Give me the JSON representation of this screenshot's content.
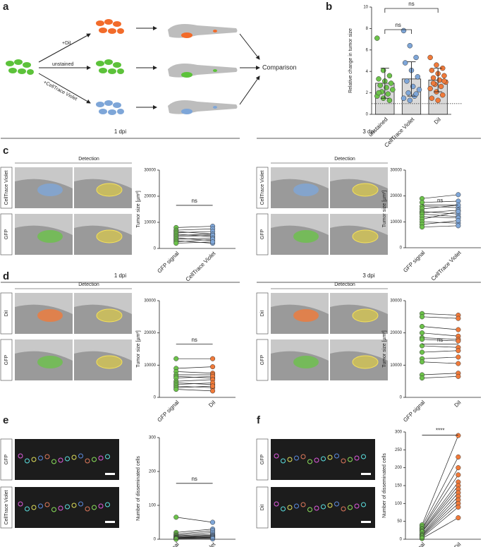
{
  "figure": {
    "panel_labels": [
      "a",
      "b",
      "c",
      "d",
      "e",
      "f"
    ],
    "diagram": {
      "labels": [
        "+DiI",
        "unstained",
        "+CellTrace Violet"
      ],
      "result": "Comparison"
    },
    "timepoints": [
      "1 dpi",
      "3 dpi"
    ],
    "detection": "Detection",
    "channels": [
      "CellTrace Violet",
      "GFP",
      "DiI"
    ]
  },
  "chart_data": [
    {
      "type": "bar",
      "ylabel": "Relative change in tumor size",
      "categories": [
        "unstained",
        "CellTrace Violet",
        "DiI"
      ],
      "colors": [
        "#6cc24a",
        "#7ea6d8",
        "#f07a3a"
      ],
      "bar_color": "#d9d9d9",
      "values": [
        2.9,
        3.3,
        3.2
      ],
      "errors": [
        1.4,
        1.6,
        1.1
      ],
      "points": [
        [
          7.1,
          4.1,
          3.6,
          3.3,
          3.1,
          2.9,
          2.7,
          2.5,
          2.3,
          2.1,
          1.9,
          1.7,
          1.5,
          1.3,
          2.0
        ],
        [
          7.8,
          6.4,
          5.3,
          4.8,
          4.1,
          3.5,
          3.1,
          2.6,
          2.3,
          2.0,
          1.7,
          1.5,
          1.3,
          1.9
        ],
        [
          5.3,
          4.6,
          4.3,
          4.1,
          3.8,
          3.6,
          3.4,
          3.2,
          3.0,
          2.8,
          2.6,
          2.4,
          2.1,
          1.8,
          1.5,
          1.3,
          3.1,
          2.9
        ]
      ],
      "reference_line": 1,
      "ylim": [
        0,
        10
      ],
      "yticks": [
        0,
        2,
        4,
        6,
        8,
        10
      ],
      "significance": [
        "ns",
        "ns"
      ]
    },
    {
      "type": "paired",
      "ylabel": "Tumor size [µm²]",
      "categories": [
        "GFP signal",
        "CellTrace Violet"
      ],
      "groups": [
        {
          "color": "#6cc24a",
          "values": [
            8000,
            7000,
            6500,
            6000,
            5500,
            5000,
            4500,
            4000,
            3500,
            3000,
            2500,
            2000
          ]
        },
        {
          "color": "#7ea6d8",
          "values": [
            8500,
            7500,
            5500,
            6500,
            4500,
            5500,
            5000,
            3000,
            4000,
            2000,
            3500,
            2500
          ]
        }
      ],
      "ylim": [
        0,
        30000
      ],
      "yticks": [
        0,
        10000,
        20000,
        30000
      ],
      "significance": "ns"
    },
    {
      "type": "paired",
      "ylabel": "Tumor size [µm²]",
      "categories": [
        "GFP signal",
        "CellTrace Violet"
      ],
      "groups": [
        {
          "color": "#6cc24a",
          "values": [
            19000,
            17500,
            16000,
            15000,
            14000,
            13500,
            13000,
            12000,
            11000,
            10000,
            9000,
            8000
          ]
        },
        {
          "color": "#7ea6d8",
          "values": [
            20500,
            18000,
            15500,
            16500,
            13000,
            14500,
            12000,
            11500,
            14000,
            9500,
            10500,
            8500
          ]
        }
      ],
      "ylim": [
        0,
        30000
      ],
      "yticks": [
        0,
        10000,
        20000,
        30000
      ],
      "significance": "ns"
    },
    {
      "type": "paired",
      "ylabel": "Tumor size [µm²]",
      "categories": [
        "GFP signal",
        "DiI"
      ],
      "groups": [
        {
          "color": "#6cc24a",
          "values": [
            12000,
            9000,
            8000,
            7000,
            6500,
            6000,
            5000,
            4500,
            4000,
            3500,
            3000,
            2500
          ]
        },
        {
          "color": "#f07a3a",
          "values": [
            12000,
            9500,
            7500,
            7000,
            6000,
            6500,
            5500,
            4000,
            4500,
            3000,
            3500,
            2000
          ]
        }
      ],
      "ylim": [
        0,
        30000
      ],
      "yticks": [
        0,
        10000,
        20000,
        30000
      ],
      "significance": "ns"
    },
    {
      "type": "paired",
      "ylabel": "Tumor size [µm²]",
      "categories": [
        "GFP signal",
        "DiI"
      ],
      "groups": [
        {
          "color": "#6cc24a",
          "values": [
            26000,
            25000,
            22000,
            20000,
            18500,
            18000,
            16000,
            14000,
            12000,
            11000,
            7000,
            6000
          ]
        },
        {
          "color": "#f07a3a",
          "values": [
            25500,
            24500,
            21000,
            19000,
            18000,
            17500,
            15500,
            14500,
            12500,
            10500,
            7500,
            6500
          ]
        }
      ],
      "ylim": [
        0,
        30000
      ],
      "yticks": [
        0,
        10000,
        20000,
        30000
      ],
      "significance": "ns"
    },
    {
      "type": "paired",
      "ylabel": "Number of disseminated cells",
      "categories": [
        "GFP signal",
        "CellTrace Violet"
      ],
      "groups": [
        {
          "color": "#6cc24a",
          "values": [
            65,
            20,
            15,
            12,
            10,
            8,
            6,
            5,
            4,
            3,
            2,
            0
          ]
        },
        {
          "color": "#7ea6d8",
          "values": [
            50,
            30,
            25,
            20,
            15,
            12,
            10,
            8,
            6,
            5,
            3,
            1
          ]
        }
      ],
      "ylim": [
        0,
        300
      ],
      "yticks": [
        0,
        100,
        200,
        300
      ],
      "significance": "ns"
    },
    {
      "type": "paired",
      "ylabel": "Number of disseminated cells",
      "categories": [
        "GFP signal",
        "DiI"
      ],
      "groups": [
        {
          "color": "#6cc24a",
          "values": [
            40,
            35,
            30,
            28,
            25,
            22,
            20,
            15,
            12,
            10,
            8,
            5,
            2
          ]
        },
        {
          "color": "#f07a3a",
          "values": [
            290,
            230,
            200,
            180,
            160,
            150,
            140,
            130,
            120,
            110,
            100,
            90,
            60
          ]
        }
      ],
      "ylim": [
        0,
        300
      ],
      "yticks": [
        0,
        50,
        100,
        150,
        200,
        250,
        300
      ],
      "significance": "****"
    }
  ]
}
